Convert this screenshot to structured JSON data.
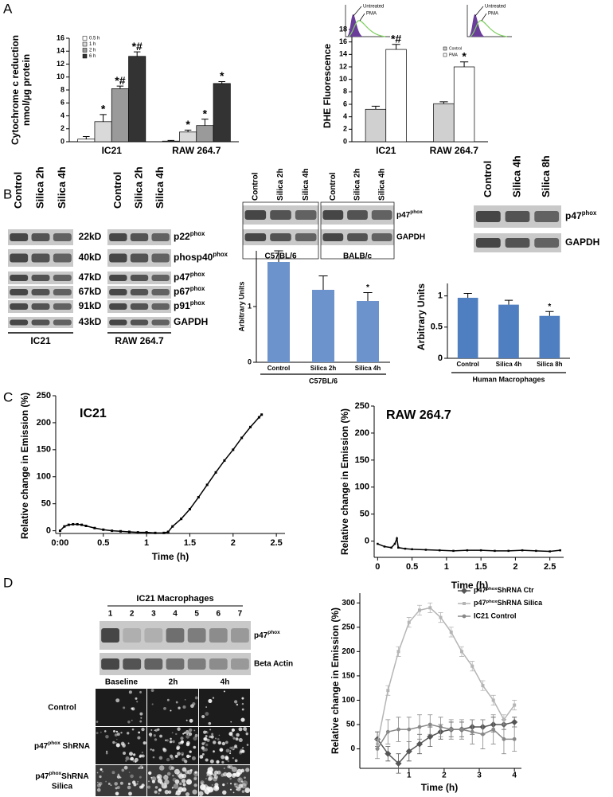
{
  "panel_labels": [
    "A",
    "B",
    "C",
    "D"
  ],
  "chart_data": [
    {
      "type": "bar",
      "ylabel": [
        "Cytochrome c reduction",
        "nmol/µg protein"
      ],
      "categories": [
        "IC21",
        "RAW 264.7"
      ],
      "ylim": [
        0,
        16
      ],
      "yticks": [
        0,
        2,
        4,
        6,
        8,
        10,
        12,
        14,
        16
      ],
      "series": [
        {
          "name": "0.5 h",
          "color": "#ffffff",
          "values": [
            0.4,
            0.1
          ],
          "errors": [
            0.4,
            0.1
          ],
          "significance": [
            null,
            null
          ]
        },
        {
          "name": "1 h",
          "color": "#d9d9d9",
          "values": [
            3.1,
            1.5
          ],
          "errors": [
            1.1,
            0.3
          ],
          "significance": [
            "*",
            "*"
          ]
        },
        {
          "name": "2 h",
          "color": "#9a9a9a",
          "values": [
            8.2,
            2.5
          ],
          "errors": [
            0.4,
            1.0
          ],
          "significance": [
            "*#",
            "*"
          ]
        },
        {
          "name": "6 h",
          "color": "#333333",
          "values": [
            13.2,
            9.0
          ],
          "errors": [
            0.7,
            0.3
          ],
          "significance": [
            "*#",
            "*"
          ]
        }
      ]
    },
    {
      "type": "bar",
      "ylabel": "DHE Fluorescence",
      "categories": [
        "IC21",
        "RAW 264.7"
      ],
      "ylim": [
        0,
        18
      ],
      "yticks": [
        0,
        2,
        4,
        6,
        8,
        10,
        12,
        14,
        16,
        18
      ],
      "series": [
        {
          "name": "Control",
          "color": "#d0d0d0",
          "values": [
            5.2,
            6.1
          ],
          "errors": [
            0.5,
            0.3
          ],
          "significance": [
            null,
            null
          ]
        },
        {
          "name": "PMA",
          "color": "#ffffff",
          "values": [
            14.8,
            12.0
          ],
          "errors": [
            0.8,
            0.8
          ],
          "significance": [
            "*#",
            "*"
          ]
        }
      ],
      "inset_labels": [
        "Untreated",
        "PMA"
      ]
    },
    {
      "type": "bar",
      "ylabel": "Arbitrary Units",
      "xlabel": "C57BL/6",
      "categories": [
        "Control",
        "Silica 2h",
        "Silica 4h"
      ],
      "ylim": [
        0,
        2
      ],
      "yticks": [
        0,
        1
      ],
      "color": "#6d93cc",
      "values": [
        1.8,
        1.3,
        1.1
      ],
      "errors": [
        0.2,
        0.25,
        0.15
      ],
      "significance": [
        null,
        null,
        "*"
      ]
    },
    {
      "type": "bar",
      "ylabel": "Arbitrary Units",
      "xlabel": "Human Macrophages",
      "categories": [
        "Control",
        "Silica 4h",
        "Silica 8h"
      ],
      "ylim": [
        0,
        1.2
      ],
      "yticks": [
        0,
        0.5,
        1
      ],
      "color": "#4f7fc0",
      "values": [
        0.97,
        0.86,
        0.68
      ],
      "errors": [
        0.07,
        0.07,
        0.07
      ],
      "significance": [
        null,
        null,
        "*"
      ]
    },
    {
      "type": "line",
      "title": "IC21",
      "ylabel": "Relative change in Emission (%)",
      "xlabel": "Time (h)",
      "x": [
        0,
        0.05,
        0.1,
        0.15,
        0.2,
        0.25,
        0.3,
        0.4,
        0.5,
        0.6,
        0.7,
        0.8,
        0.9,
        1.0,
        1.1,
        1.2,
        1.25,
        1.3,
        1.4,
        1.5,
        1.6,
        1.7,
        1.8,
        1.9,
        2.0,
        2.1,
        2.2,
        2.3,
        2.33
      ],
      "xlim": [
        -0.05,
        2.6
      ],
      "xticks": [
        {
          "value": 0,
          "label": "0:00"
        },
        0.5,
        1,
        1.5,
        2,
        2.5
      ],
      "ylim": [
        -5,
        250
      ],
      "yticks": [
        0,
        50,
        100,
        150,
        200,
        250
      ],
      "series": [
        {
          "color": "#000000",
          "marker": "square",
          "values": [
            0,
            8,
            11,
            12,
            12,
            11,
            9,
            5,
            2,
            0,
            -1,
            -2,
            -3,
            -3,
            -4,
            -4,
            -2,
            8,
            22,
            40,
            62,
            85,
            108,
            130,
            150,
            172,
            192,
            210,
            215
          ]
        }
      ]
    },
    {
      "type": "line",
      "title": "RAW 264.7",
      "ylabel": "Relative change in Emission (%)",
      "xlabel": "Time (h)",
      "x": [
        0,
        0.1,
        0.2,
        0.25,
        0.28,
        0.3,
        0.4,
        0.5,
        0.7,
        0.9,
        1.1,
        1.3,
        1.5,
        1.7,
        1.9,
        2.1,
        2.3,
        2.5,
        2.65
      ],
      "xlim": [
        -0.05,
        2.7
      ],
      "xticks": [
        0,
        0.5,
        1,
        1.5,
        2,
        2.5
      ],
      "ylim": [
        -30,
        250
      ],
      "yticks": [
        0,
        50,
        100,
        150,
        200,
        250
      ],
      "series": [
        {
          "color": "#000000",
          "marker": "square",
          "values": [
            -5,
            -10,
            -12,
            -5,
            5,
            -12,
            -14,
            -15,
            -16,
            -17,
            -18,
            -17,
            -17,
            -18,
            -18,
            -17,
            -18,
            -19,
            -17
          ]
        }
      ]
    },
    {
      "type": "line",
      "ylabel": "Relative change in Emission (%)",
      "xlabel": "Time (h)",
      "x": [
        0.1,
        0.4,
        0.7,
        1.0,
        1.3,
        1.6,
        1.9,
        2.2,
        2.5,
        2.8,
        3.1,
        3.4,
        3.7,
        4.0
      ],
      "xlim": [
        -0.4,
        4.2
      ],
      "xticks": [
        1,
        2,
        3,
        4
      ],
      "ylim": [
        -40,
        320
      ],
      "yticks": [
        0,
        50,
        100,
        150,
        200,
        250,
        300
      ],
      "series": [
        {
          "name": [
            {
              "text": "p47"
            },
            {
              "text": "phox",
              "sup": true
            },
            {
              "text": "ShRNA Ctr"
            }
          ],
          "color": "#555555",
          "marker": "diamond",
          "values": [
            20,
            -10,
            -30,
            -5,
            10,
            25,
            35,
            40,
            40,
            45,
            45,
            50,
            50,
            55
          ],
          "errors": [
            15,
            15,
            20,
            20,
            20,
            20,
            15,
            15,
            15,
            15,
            15,
            15,
            10,
            10
          ]
        },
        {
          "name": [
            {
              "text": "p47"
            },
            {
              "text": "phox",
              "sup": true
            },
            {
              "text": "ShRNA Silica"
            }
          ],
          "color": "#b5b5b5",
          "marker": "square",
          "values": [
            10,
            120,
            200,
            260,
            285,
            290,
            270,
            240,
            200,
            170,
            130,
            100,
            60,
            90
          ],
          "errors": [
            10,
            10,
            10,
            10,
            10,
            10,
            10,
            10,
            10,
            10,
            10,
            10,
            10,
            10
          ]
        },
        {
          "name": "IC21 Control",
          "color": "#888888",
          "marker": "circle",
          "values": [
            0,
            35,
            40,
            40,
            45,
            50,
            45,
            40,
            40,
            35,
            30,
            40,
            20,
            20
          ],
          "errors": [
            20,
            25,
            25,
            25,
            25,
            20,
            20,
            20,
            20,
            25,
            30,
            30,
            30,
            25
          ]
        }
      ]
    }
  ],
  "blots": [
    {
      "lanes": [
        "Control",
        "Silica 2h",
        "Silica 4h",
        "Control",
        "Silica 2h",
        "Silica 4h"
      ],
      "groups": [
        "IC21",
        "RAW 264.7"
      ],
      "sizes": [
        "22kD",
        "40kD",
        "47kD",
        "67kD",
        "91kD",
        "43kD"
      ],
      "proteins": [
        [
          {
            "text": "p22"
          },
          {
            "text": "phox",
            "sup": true
          }
        ],
        [
          {
            "text": "phosp40"
          },
          {
            "text": "phox",
            "sup": true
          }
        ],
        [
          {
            "text": "p47"
          },
          {
            "text": "phox",
            "sup": true
          }
        ],
        [
          {
            "text": "p67"
          },
          {
            "text": "phox",
            "sup": true
          }
        ],
        [
          {
            "text": "p91"
          },
          {
            "text": "phox",
            "sup": true
          }
        ],
        "GAPDH"
      ]
    },
    {
      "lanes": [
        "Control",
        "Silica 2h",
        "Silica 4h",
        "Control",
        "Silica 2h",
        "Silica 4h"
      ],
      "groups": [
        "C57BL/6",
        "BALB/c"
      ],
      "proteins": [
        [
          {
            "text": "p47"
          },
          {
            "text": "phox",
            "sup": true
          }
        ],
        "GAPDH"
      ]
    },
    {
      "lanes": [
        "Control",
        "Silica 4h",
        "Silica 8h"
      ],
      "proteins": [
        [
          {
            "text": "p47"
          },
          {
            "text": "phox",
            "sup": true
          }
        ],
        "GAPDH"
      ]
    },
    {
      "title": "IC21 Macrophages",
      "lanes": [
        "1",
        "2",
        "3",
        "4",
        "5",
        "6",
        "7"
      ],
      "proteins": [
        [
          {
            "text": "p47"
          },
          {
            "text": "phox",
            "sup": true
          }
        ],
        "Beta Actin"
      ]
    }
  ],
  "micrographs": {
    "columns": [
      "Baseline",
      "2h",
      "4h"
    ],
    "rows": [
      [
        "Control"
      ],
      [
        [
          {
            "text": "p47"
          },
          {
            "text": "phox",
            "sup": true
          },
          {
            "text": " ShRNA"
          }
        ]
      ],
      [
        [
          {
            "text": "p47"
          },
          {
            "text": "phox",
            "sup": true
          },
          {
            "text": "ShRNA"
          }
        ],
        "Silica"
      ]
    ]
  }
}
